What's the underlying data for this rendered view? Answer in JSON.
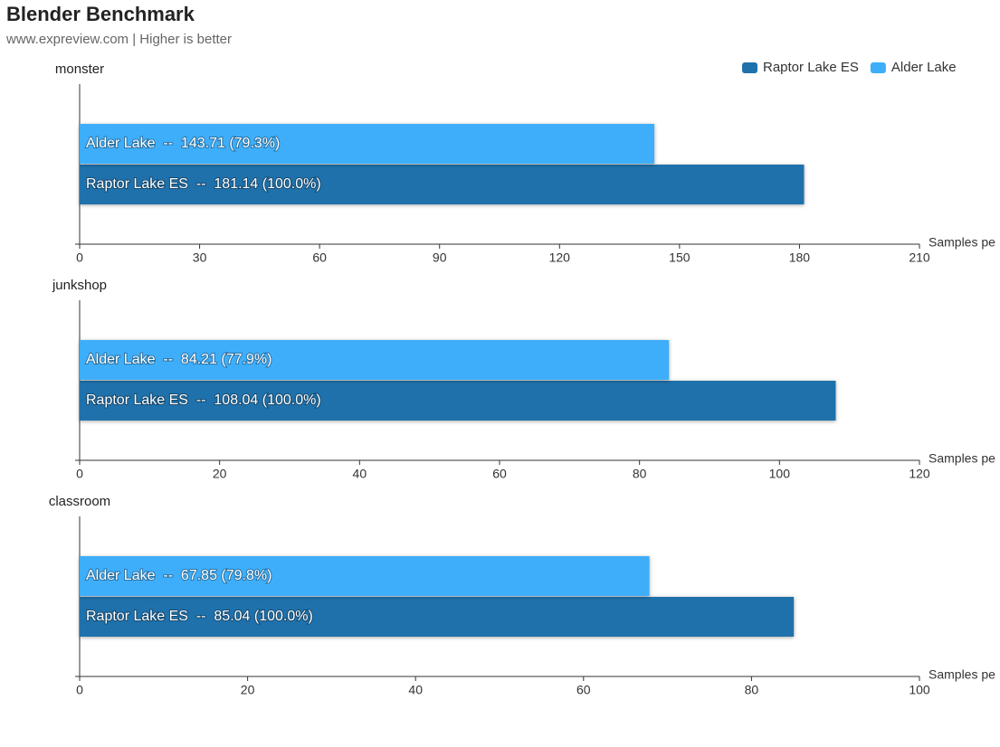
{
  "title": "Blender Benchmark",
  "subtitle": "www.expreview.com | Higher is better",
  "legend": "top-right",
  "chart_data": [
    {
      "type": "bar",
      "orientation": "horizontal",
      "title": "monster",
      "x_label": "Samples pe",
      "xlim": [
        0,
        210
      ],
      "xticks": [
        0,
        30,
        60,
        90,
        120,
        150,
        180,
        210
      ],
      "series": [
        {
          "name": "Raptor Lake ES",
          "color": "#1f71ab",
          "values": [
            181.14
          ],
          "value_labels": [
            "Raptor Lake ES  --  181.14 (100.0%)"
          ]
        },
        {
          "name": "Alder Lake",
          "color": "#3eaefa",
          "values": [
            143.71
          ],
          "value_labels": [
            "Alder Lake  --  143.71 (79.3%)"
          ]
        }
      ]
    },
    {
      "type": "bar",
      "orientation": "horizontal",
      "title": "junkshop",
      "x_label": "Samples pe",
      "xlim": [
        0,
        120
      ],
      "xticks": [
        0,
        20,
        40,
        60,
        80,
        100,
        120
      ],
      "series": [
        {
          "name": "Raptor Lake ES",
          "color": "#1f71ab",
          "values": [
            108.04
          ],
          "value_labels": [
            "Raptor Lake ES  --  108.04 (100.0%)"
          ]
        },
        {
          "name": "Alder Lake",
          "color": "#3eaefa",
          "values": [
            84.21
          ],
          "value_labels": [
            "Alder Lake  --  84.21 (77.9%)"
          ]
        }
      ]
    },
    {
      "type": "bar",
      "orientation": "horizontal",
      "title": "classroom",
      "x_label": "Samples pe",
      "xlim": [
        0,
        100
      ],
      "xticks": [
        0,
        20,
        40,
        60,
        80,
        100
      ],
      "series": [
        {
          "name": "Raptor Lake ES",
          "color": "#1f71ab",
          "values": [
            85.04
          ],
          "value_labels": [
            "Raptor Lake ES  --  85.04 (100.0%)"
          ]
        },
        {
          "name": "Alder Lake",
          "color": "#3eaefa",
          "values": [
            67.85
          ],
          "value_labels": [
            "Alder Lake  --  67.85 (79.8%)"
          ]
        }
      ]
    }
  ]
}
